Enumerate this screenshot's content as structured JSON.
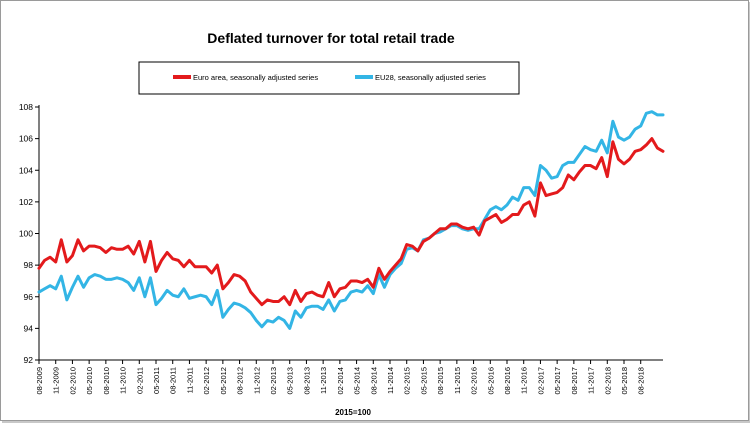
{
  "chart_data": {
    "type": "line",
    "title": "Deflated turnover for total retail trade",
    "xlabel": "2015=100",
    "ylabel": "",
    "ylim": [
      92,
      108
    ],
    "y_ticks": [
      92,
      94,
      96,
      98,
      100,
      102,
      104,
      106,
      108
    ],
    "x_tick_labels": [
      "08-2009",
      "11-2009",
      "02-2010",
      "05-2010",
      "08-2010",
      "11-2010",
      "02-2011",
      "05-2011",
      "08-2011",
      "11-2011",
      "02-2012",
      "05-2012",
      "08-2012",
      "11-2012",
      "02-2013",
      "05-2013",
      "08-2013",
      "11-2013",
      "02-2014",
      "05-2014",
      "08-2014",
      "11-2014",
      "02-2015",
      "05-2015",
      "08-2015",
      "11-2015",
      "02-2016",
      "05-2016",
      "08-2016",
      "11-2016",
      "02-2017",
      "05-2017",
      "08-2017",
      "11-2017",
      "02-2018",
      "05-2018",
      "08-2018"
    ],
    "legend_position": "top",
    "series": [
      {
        "name": "Euro area, seasonally adjusted series",
        "color": "#e31a1c",
        "values": [
          97.8,
          98.3,
          98.5,
          98.2,
          99.6,
          98.2,
          98.6,
          99.6,
          98.9,
          99.2,
          99.2,
          99.1,
          98.8,
          99.1,
          99.0,
          99.0,
          99.2,
          98.7,
          99.5,
          98.2,
          99.5,
          97.6,
          98.3,
          98.8,
          98.4,
          98.3,
          97.9,
          98.3,
          97.9,
          97.9,
          97.9,
          97.5,
          98.0,
          96.5,
          96.9,
          97.4,
          97.3,
          97.0,
          96.3,
          95.9,
          95.5,
          95.8,
          95.7,
          95.7,
          96.0,
          95.5,
          96.4,
          95.7,
          96.2,
          96.3,
          96.1,
          96.0,
          96.9,
          96.0,
          96.5,
          96.6,
          97.0,
          97.0,
          96.9,
          97.1,
          96.6,
          97.8,
          97.1,
          97.6,
          98.0,
          98.4,
          99.3,
          99.2,
          98.9,
          99.5,
          99.7,
          100.0,
          100.3,
          100.3,
          100.6,
          100.6,
          100.4,
          100.3,
          100.4,
          99.9,
          100.8,
          101.0,
          101.2,
          100.7,
          100.9,
          101.2,
          101.2,
          101.8,
          102.0,
          101.1,
          103.2,
          102.4,
          102.5,
          102.6,
          102.9,
          103.7,
          103.4,
          103.9,
          104.3,
          104.3,
          104.1,
          104.8,
          103.6,
          105.8,
          104.7,
          104.4,
          104.7,
          105.2,
          105.3,
          105.6,
          106.0,
          105.4,
          105.2
        ]
      },
      {
        "name": "EU28, seasonally adjusted series",
        "color": "#33b5e5",
        "values": [
          96.3,
          96.5,
          96.7,
          96.5,
          97.3,
          95.8,
          96.6,
          97.3,
          96.6,
          97.2,
          97.4,
          97.3,
          97.1,
          97.1,
          97.2,
          97.1,
          96.9,
          96.4,
          97.2,
          96.0,
          97.2,
          95.5,
          95.9,
          96.4,
          96.1,
          96.0,
          96.5,
          95.9,
          96.0,
          96.1,
          96.0,
          95.5,
          96.4,
          94.7,
          95.2,
          95.6,
          95.5,
          95.3,
          95.0,
          94.5,
          94.1,
          94.5,
          94.4,
          94.7,
          94.5,
          94.0,
          95.1,
          94.7,
          95.3,
          95.4,
          95.4,
          95.2,
          95.8,
          95.1,
          95.7,
          95.8,
          96.3,
          96.4,
          96.3,
          96.7,
          96.2,
          97.4,
          96.6,
          97.4,
          97.8,
          98.1,
          99.0,
          99.1,
          98.9,
          99.6,
          99.7,
          100.0,
          100.1,
          100.3,
          100.5,
          100.5,
          100.3,
          100.2,
          100.3,
          100.3,
          100.9,
          101.5,
          101.7,
          101.5,
          101.8,
          102.3,
          102.1,
          102.9,
          102.9,
          102.4,
          104.3,
          104.0,
          103.5,
          103.6,
          104.3,
          104.5,
          104.5,
          105.0,
          105.5,
          105.3,
          105.2,
          105.9,
          105.1,
          107.1,
          106.1,
          105.9,
          106.1,
          106.6,
          106.8,
          107.6,
          107.7,
          107.5,
          107.5
        ]
      }
    ]
  }
}
